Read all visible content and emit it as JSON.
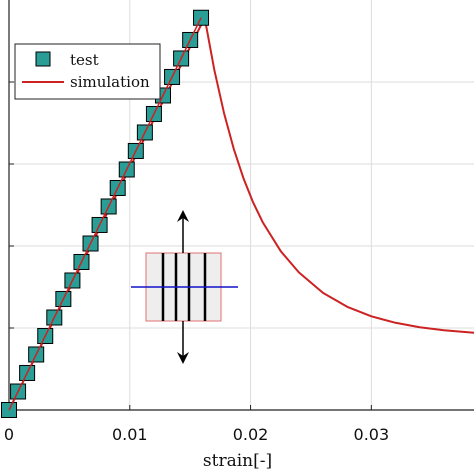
{
  "chart_data": {
    "type": "line",
    "xlabel": "strain[-]",
    "ylabel": "",
    "title": "",
    "xlim": [
      0,
      0.0385
    ],
    "ylim": [
      0,
      1.0
    ],
    "xticks": [
      0,
      0.01,
      0.02,
      0.03
    ],
    "xtick_labels": [
      "0",
      "0.01",
      "0.02",
      "0.03"
    ],
    "grid": true,
    "legend_position": "top-left",
    "series": [
      {
        "name": "test",
        "style": "square-markers",
        "color": "#2a9d96",
        "x": [
          0,
          0.00075,
          0.0015,
          0.00225,
          0.003,
          0.00375,
          0.0045,
          0.00525,
          0.006,
          0.00675,
          0.0075,
          0.00825,
          0.009,
          0.00975,
          0.0105,
          0.01125,
          0.012,
          0.01275,
          0.0135,
          0.01425,
          0.015,
          0.0159
        ],
        "y": [
          0,
          0.0451,
          0.0903,
          0.1354,
          0.1805,
          0.2256,
          0.2708,
          0.3159,
          0.361,
          0.4061,
          0.4513,
          0.4964,
          0.5415,
          0.5866,
          0.6318,
          0.6769,
          0.722,
          0.7671,
          0.8123,
          0.8574,
          0.9025,
          0.9567
        ]
      },
      {
        "name": "simulation",
        "style": "line",
        "color": "#cc2222",
        "x": [
          0,
          0.0162,
          0.017,
          0.0178,
          0.0186,
          0.0194,
          0.0202,
          0.021,
          0.0225,
          0.024,
          0.026,
          0.028,
          0.03,
          0.032,
          0.034,
          0.036,
          0.0385
        ],
        "y": [
          0,
          0.9567,
          0.8294,
          0.7245,
          0.6378,
          0.5662,
          0.5071,
          0.4583,
          0.3873,
          0.3356,
          0.2857,
          0.2517,
          0.2285,
          0.2127,
          0.2019,
          0.1945,
          0.1883
        ]
      }
    ]
  }
}
